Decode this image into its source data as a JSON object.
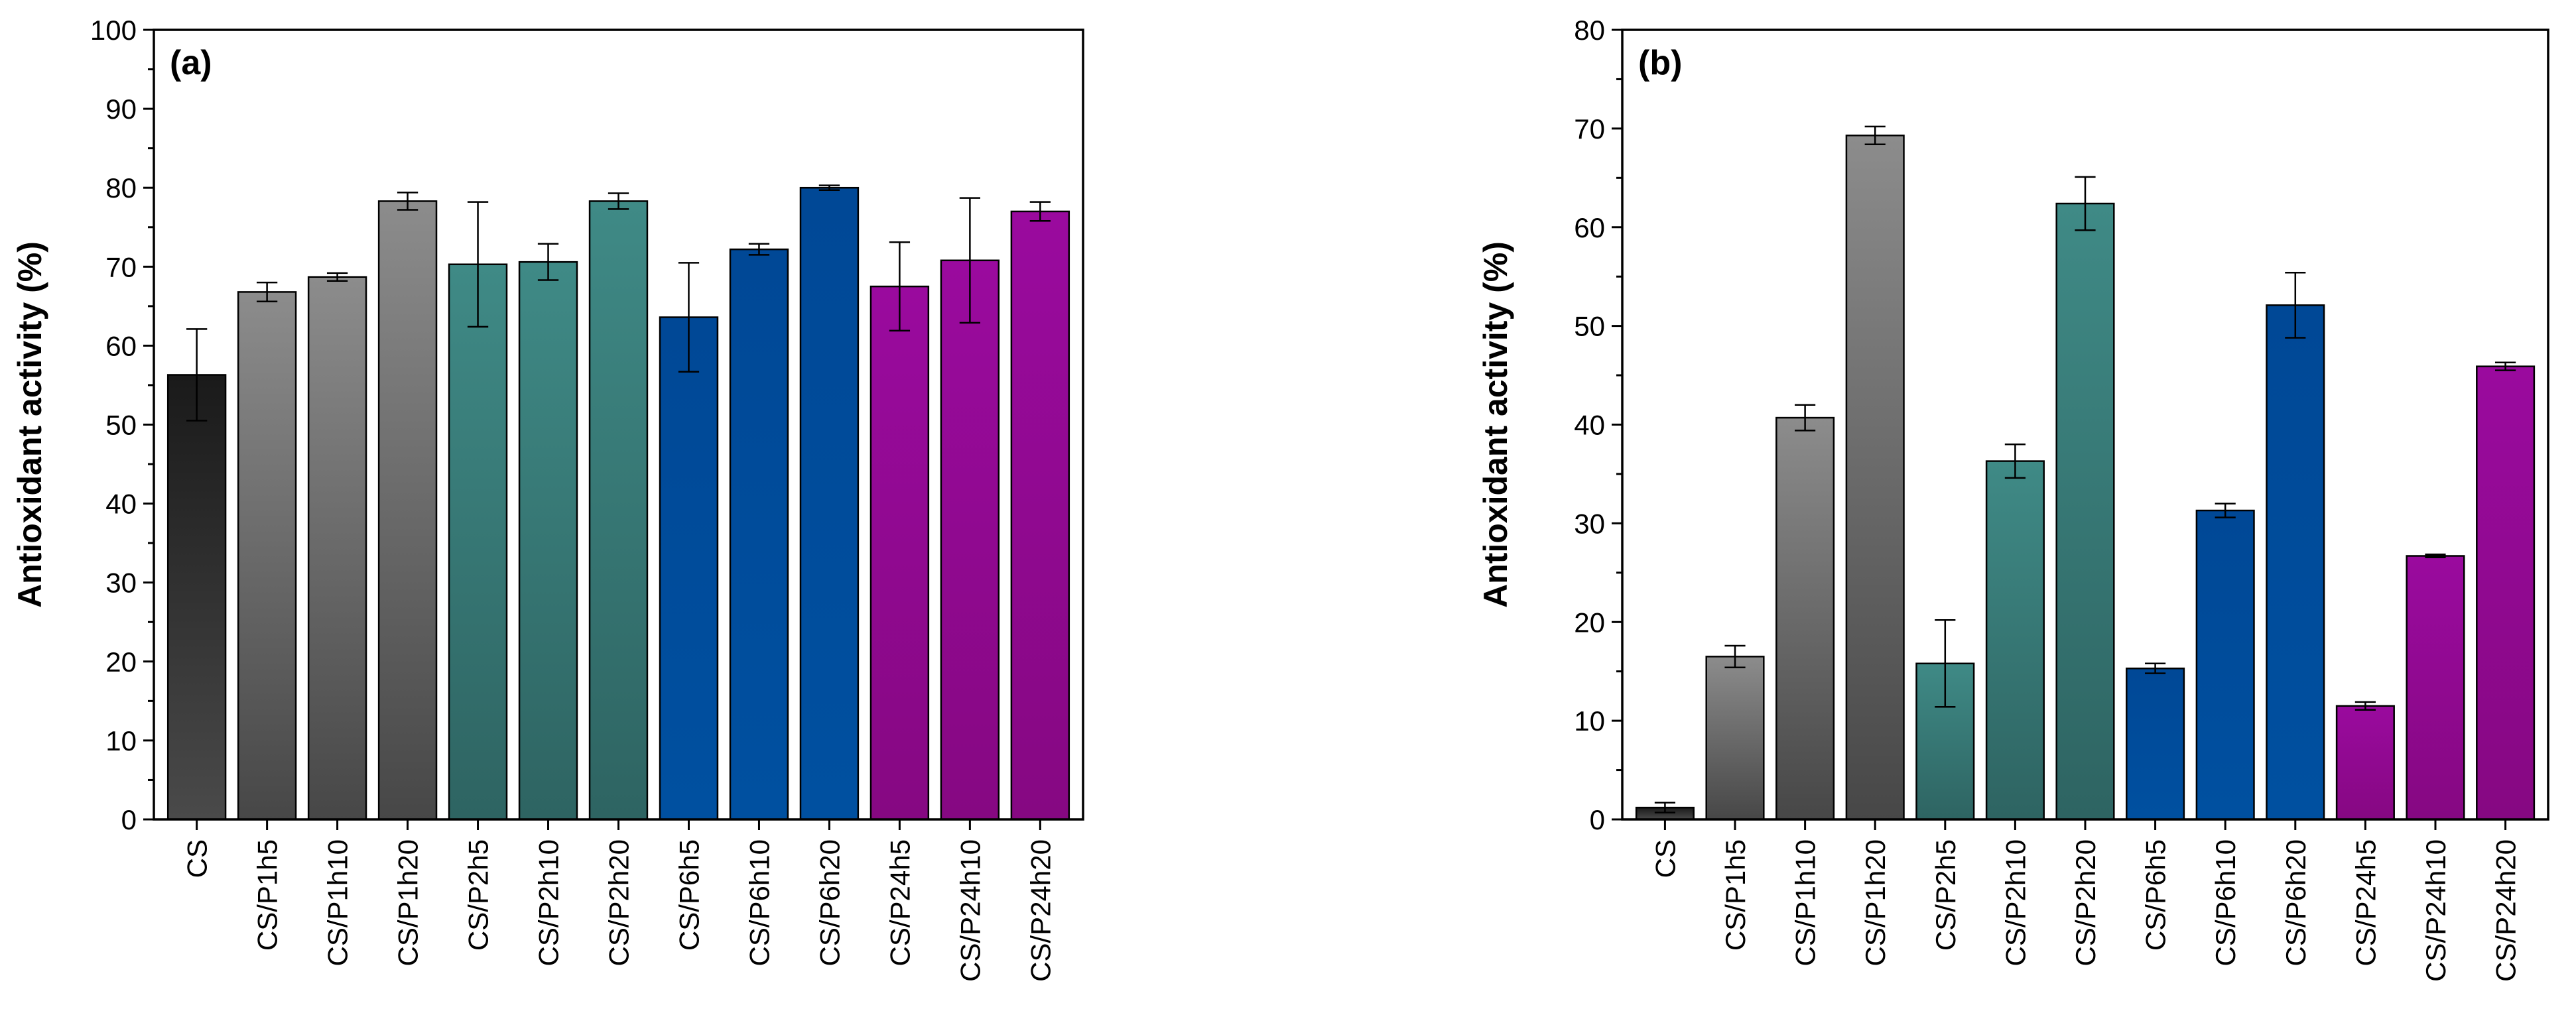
{
  "chart_data": [
    {
      "type": "bar",
      "panel_label": "(a)",
      "title": "",
      "xlabel": "",
      "ylabel": "Antioxidant activity (%)",
      "ylim": [
        0,
        100
      ],
      "yticks": [
        0,
        10,
        20,
        30,
        40,
        50,
        60,
        70,
        80,
        90,
        100
      ],
      "categories": [
        "CS",
        "CS/P1h5",
        "CS/P1h10",
        "CS/P1h20",
        "CS/P2h5",
        "CS/P2h10",
        "CS/P2h20",
        "CS/P6h5",
        "CS/P6h10",
        "CS/P6h20",
        "CS/P24h5",
        "CS/P24h10",
        "CS/P24h20"
      ],
      "values": [
        56.3,
        66.8,
        68.7,
        78.3,
        70.3,
        70.6,
        78.3,
        63.6,
        72.2,
        80.0,
        67.5,
        70.8,
        77.0
      ],
      "errors": [
        5.8,
        1.2,
        0.5,
        1.1,
        7.9,
        2.3,
        1.0,
        6.9,
        0.7,
        0.3,
        5.6,
        7.9,
        1.2
      ],
      "groups": [
        "black",
        "gray",
        "gray",
        "gray",
        "teal",
        "teal",
        "teal",
        "blue",
        "blue",
        "blue",
        "purple",
        "purple",
        "purple"
      ]
    },
    {
      "type": "bar",
      "panel_label": "(b)",
      "title": "",
      "xlabel": "",
      "ylabel": "Antioxidant activity (%)",
      "ylim": [
        0,
        80
      ],
      "yticks": [
        0,
        10,
        20,
        30,
        40,
        50,
        60,
        70,
        80
      ],
      "categories": [
        "CS",
        "CS/P1h5",
        "CS/P1h10",
        "CS/P1h20",
        "CS/P2h5",
        "CS/P2h10",
        "CS/P2h20",
        "CS/P6h5",
        "CS/P6h10",
        "CS/P6h20",
        "CS/P24h5",
        "CS/P24h10",
        "CS/P24h20"
      ],
      "values": [
        1.2,
        16.5,
        40.7,
        69.3,
        15.8,
        36.3,
        62.4,
        15.3,
        31.3,
        52.1,
        11.5,
        26.7,
        45.9
      ],
      "errors": [
        0.5,
        1.1,
        1.3,
        0.9,
        4.4,
        1.7,
        2.7,
        0.5,
        0.7,
        3.3,
        0.4,
        0.15,
        0.4
      ],
      "groups": [
        "black",
        "gray",
        "gray",
        "gray",
        "teal",
        "teal",
        "teal",
        "blue",
        "blue",
        "blue",
        "purple",
        "purple",
        "purple"
      ]
    }
  ],
  "colors": {
    "black": [
      "#1a1a1a",
      "#4a4a4a"
    ],
    "gray": [
      "#8c8c8c",
      "#474747"
    ],
    "teal": [
      "#3f8a86",
      "#2e6462"
    ],
    "blue": [
      "#004896",
      "#0050a0"
    ],
    "purple": [
      "#9a0a9e",
      "#860882"
    ]
  }
}
